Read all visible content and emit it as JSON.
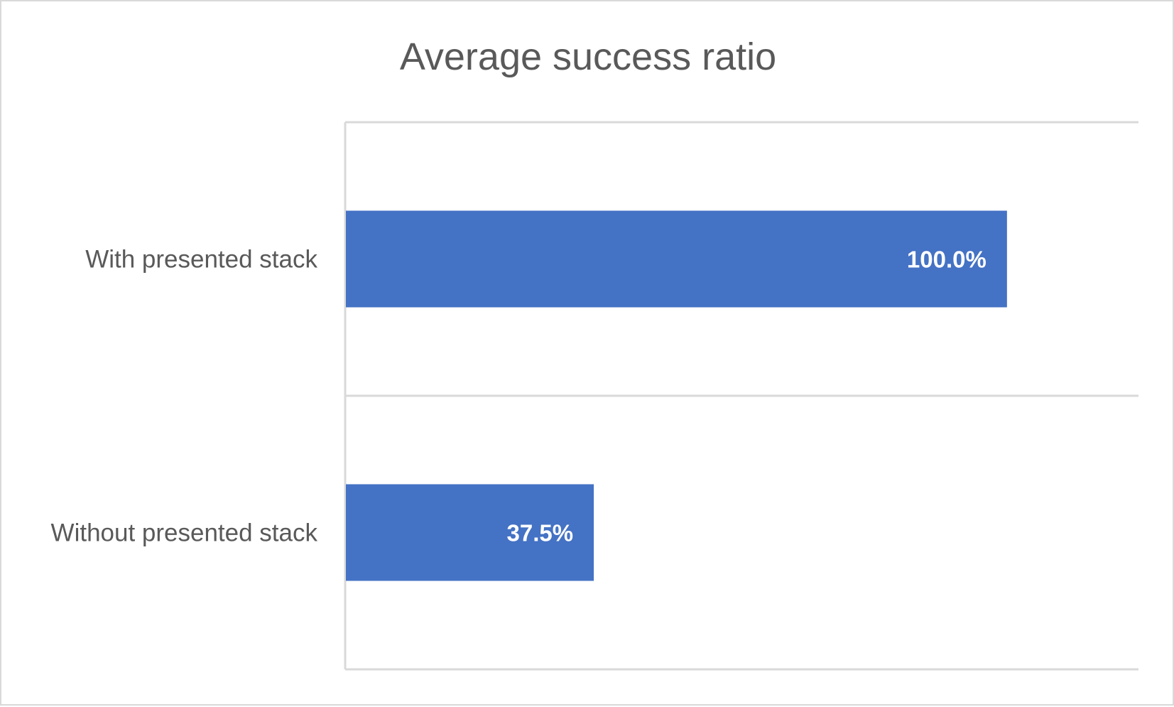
{
  "chart_data": {
    "type": "bar",
    "orientation": "horizontal",
    "title": "Average success ratio",
    "categories": [
      "With presented stack",
      "Without presented stack"
    ],
    "values": [
      100.0,
      37.5
    ],
    "data_labels": [
      "100.0%",
      "37.5%"
    ],
    "xlim": [
      0,
      120
    ],
    "x_unit": "%",
    "grid": "horizontal category separators",
    "legend": "none",
    "bar_color": "#4472c4",
    "label_color": "#ffffff",
    "text_color": "#595959",
    "gridline_color": "#d9d9d9"
  }
}
